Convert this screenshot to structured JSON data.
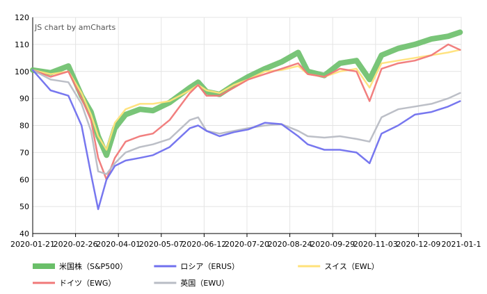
{
  "credit": "JS chart by amCharts",
  "chart_data": {
    "type": "line",
    "title": "",
    "xlabel": "",
    "ylabel": "",
    "ylim": [
      40,
      120
    ],
    "y_ticks": [
      40,
      50,
      60,
      70,
      80,
      90,
      100,
      110,
      120
    ],
    "x_ticks": [
      "2020-01-21",
      "2020-02-26",
      "2020-04-01",
      "2020-05-07",
      "2020-06-12",
      "2020-07-20",
      "2020-08-24",
      "2020-09-29",
      "2020-11-03",
      "2020-12-09",
      "2021-01-1"
    ],
    "grid": true,
    "legend_position": "bottom",
    "x": [
      "2020-01-21",
      "2020-02-05",
      "2020-02-20",
      "2020-03-02",
      "2020-03-10",
      "2020-03-16",
      "2020-03-23",
      "2020-03-30",
      "2020-04-08",
      "2020-04-20",
      "2020-05-01",
      "2020-05-15",
      "2020-06-01",
      "2020-06-08",
      "2020-06-15",
      "2020-06-26",
      "2020-07-08",
      "2020-07-20",
      "2020-08-03",
      "2020-08-17",
      "2020-08-31",
      "2020-09-08",
      "2020-09-22",
      "2020-10-05",
      "2020-10-19",
      "2020-10-30",
      "2020-11-09",
      "2020-11-23",
      "2020-12-07",
      "2020-12-21",
      "2021-01-04",
      "2021-01-14"
    ],
    "series": [
      {
        "name": "米国株（S&P500）",
        "color": "#6abf69",
        "values": [
          100.5,
          99.5,
          102.0,
          91.0,
          85.0,
          76.0,
          69.0,
          79.0,
          84.0,
          86.0,
          85.5,
          88.5,
          94.0,
          96.0,
          92.5,
          91.5,
          95.0,
          98.0,
          101.0,
          103.5,
          107.0,
          100.0,
          98.5,
          103.0,
          104.0,
          97.0,
          106.0,
          108.5,
          110.0,
          112.0,
          113.0,
          114.5
        ]
      },
      {
        "name": "ロシア（ERUS）",
        "color": "#7070ee",
        "values": [
          100.5,
          93.0,
          91.0,
          80.0,
          62.0,
          49.0,
          60.0,
          65.0,
          67.0,
          68.0,
          69.0,
          72.0,
          79.0,
          80.0,
          78.0,
          76.0,
          77.5,
          78.5,
          81.0,
          80.5,
          76.0,
          73.0,
          71.0,
          71.0,
          70.0,
          66.0,
          77.0,
          80.0,
          84.0,
          85.0,
          87.0,
          89.0
        ]
      },
      {
        "name": "スイス（EWL）",
        "color": "#ffe27a",
        "values": [
          100.5,
          99.0,
          100.0,
          92.0,
          84.0,
          76.0,
          71.0,
          81.0,
          86.0,
          88.0,
          88.0,
          89.0,
          93.0,
          95.0,
          93.0,
          92.0,
          95.0,
          97.0,
          100.0,
          100.5,
          102.0,
          99.0,
          98.0,
          100.0,
          101.0,
          94.0,
          103.0,
          104.0,
          105.0,
          106.0,
          107.0,
          108.0
        ]
      },
      {
        "name": "ドイツ（EWG）",
        "color": "#f07878",
        "values": [
          100.5,
          98.0,
          100.0,
          90.0,
          82.0,
          68.0,
          60.0,
          68.0,
          74.0,
          76.0,
          77.0,
          82.0,
          92.0,
          95.0,
          91.0,
          91.0,
          94.0,
          97.0,
          99.0,
          101.0,
          103.0,
          99.0,
          98.0,
          101.0,
          100.0,
          89.0,
          101.0,
          103.0,
          104.0,
          106.0,
          110.0,
          108.0
        ]
      },
      {
        "name": "英国（EWU）",
        "color": "#b8bcc4",
        "values": [
          100.5,
          97.0,
          96.0,
          88.0,
          78.0,
          63.0,
          62.0,
          66.0,
          70.0,
          72.0,
          73.0,
          75.0,
          82.0,
          83.0,
          78.0,
          77.0,
          78.0,
          79.0,
          80.0,
          80.5,
          78.0,
          76.0,
          75.5,
          76.0,
          75.0,
          74.0,
          83.0,
          86.0,
          87.0,
          88.0,
          90.0,
          92.0
        ]
      }
    ]
  }
}
